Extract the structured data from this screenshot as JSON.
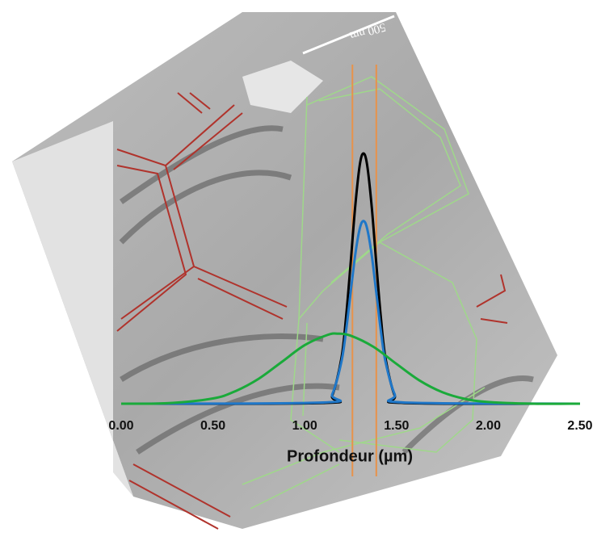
{
  "chart_data": {
    "type": "line",
    "scale_bar": "500 nm",
    "x_label": "Profondeur (µm)",
    "xlim": [
      0,
      2.5
    ],
    "ylim": [
      0,
      1
    ],
    "xticks": [
      {
        "value": 0,
        "label": "0.00"
      },
      {
        "value": 0.5,
        "label": "0.50"
      },
      {
        "value": 1,
        "label": "1.00"
      },
      {
        "value": 1.5,
        "label": "1.50"
      },
      {
        "value": 2,
        "label": "2.00"
      },
      {
        "value": 2.5,
        "label": "2.50"
      }
    ],
    "markers": [
      1.26,
      1.39
    ],
    "marker_color": "#e8924a",
    "series": [
      {
        "color": "#000000",
        "x": [
          0,
          1.1,
          1.15,
          1.2,
          1.225,
          1.25,
          1.275,
          1.3,
          1.32,
          1.34,
          1.365,
          1.39,
          1.415,
          1.44,
          1.49,
          1.54,
          2.5
        ],
        "values": [
          0,
          0.003,
          0.033,
          0.182,
          0.344,
          0.56,
          0.787,
          0.954,
          1,
          0.954,
          0.787,
          0.56,
          0.344,
          0.182,
          0.033,
          0.003,
          0
        ]
      },
      {
        "color": "#1f77c8",
        "x": [
          0,
          1.1,
          1.15,
          1.2,
          1.225,
          1.25,
          1.275,
          1.3,
          1.32,
          1.34,
          1.365,
          1.39,
          1.415,
          1.44,
          1.49,
          1.54,
          2.5
        ],
        "values": [
          0,
          0.005,
          0.038,
          0.168,
          0.29,
          0.443,
          0.594,
          0.7,
          0.73,
          0.7,
          0.594,
          0.443,
          0.29,
          0.168,
          0.038,
          0.005,
          0
        ]
      },
      {
        "color": "#1aaa3a",
        "x": [
          0,
          0.25,
          0.5,
          0.625,
          0.75,
          0.875,
          1,
          1.125,
          1.18,
          1.25,
          1.375,
          1.5,
          1.625,
          1.75,
          1.875,
          2,
          2.25,
          2.5
        ],
        "values": [
          0,
          0.002,
          0.021,
          0.051,
          0.1,
          0.167,
          0.234,
          0.275,
          0.28,
          0.272,
          0.227,
          0.159,
          0.093,
          0.046,
          0.019,
          0.007,
          0,
          0
        ]
      }
    ]
  }
}
